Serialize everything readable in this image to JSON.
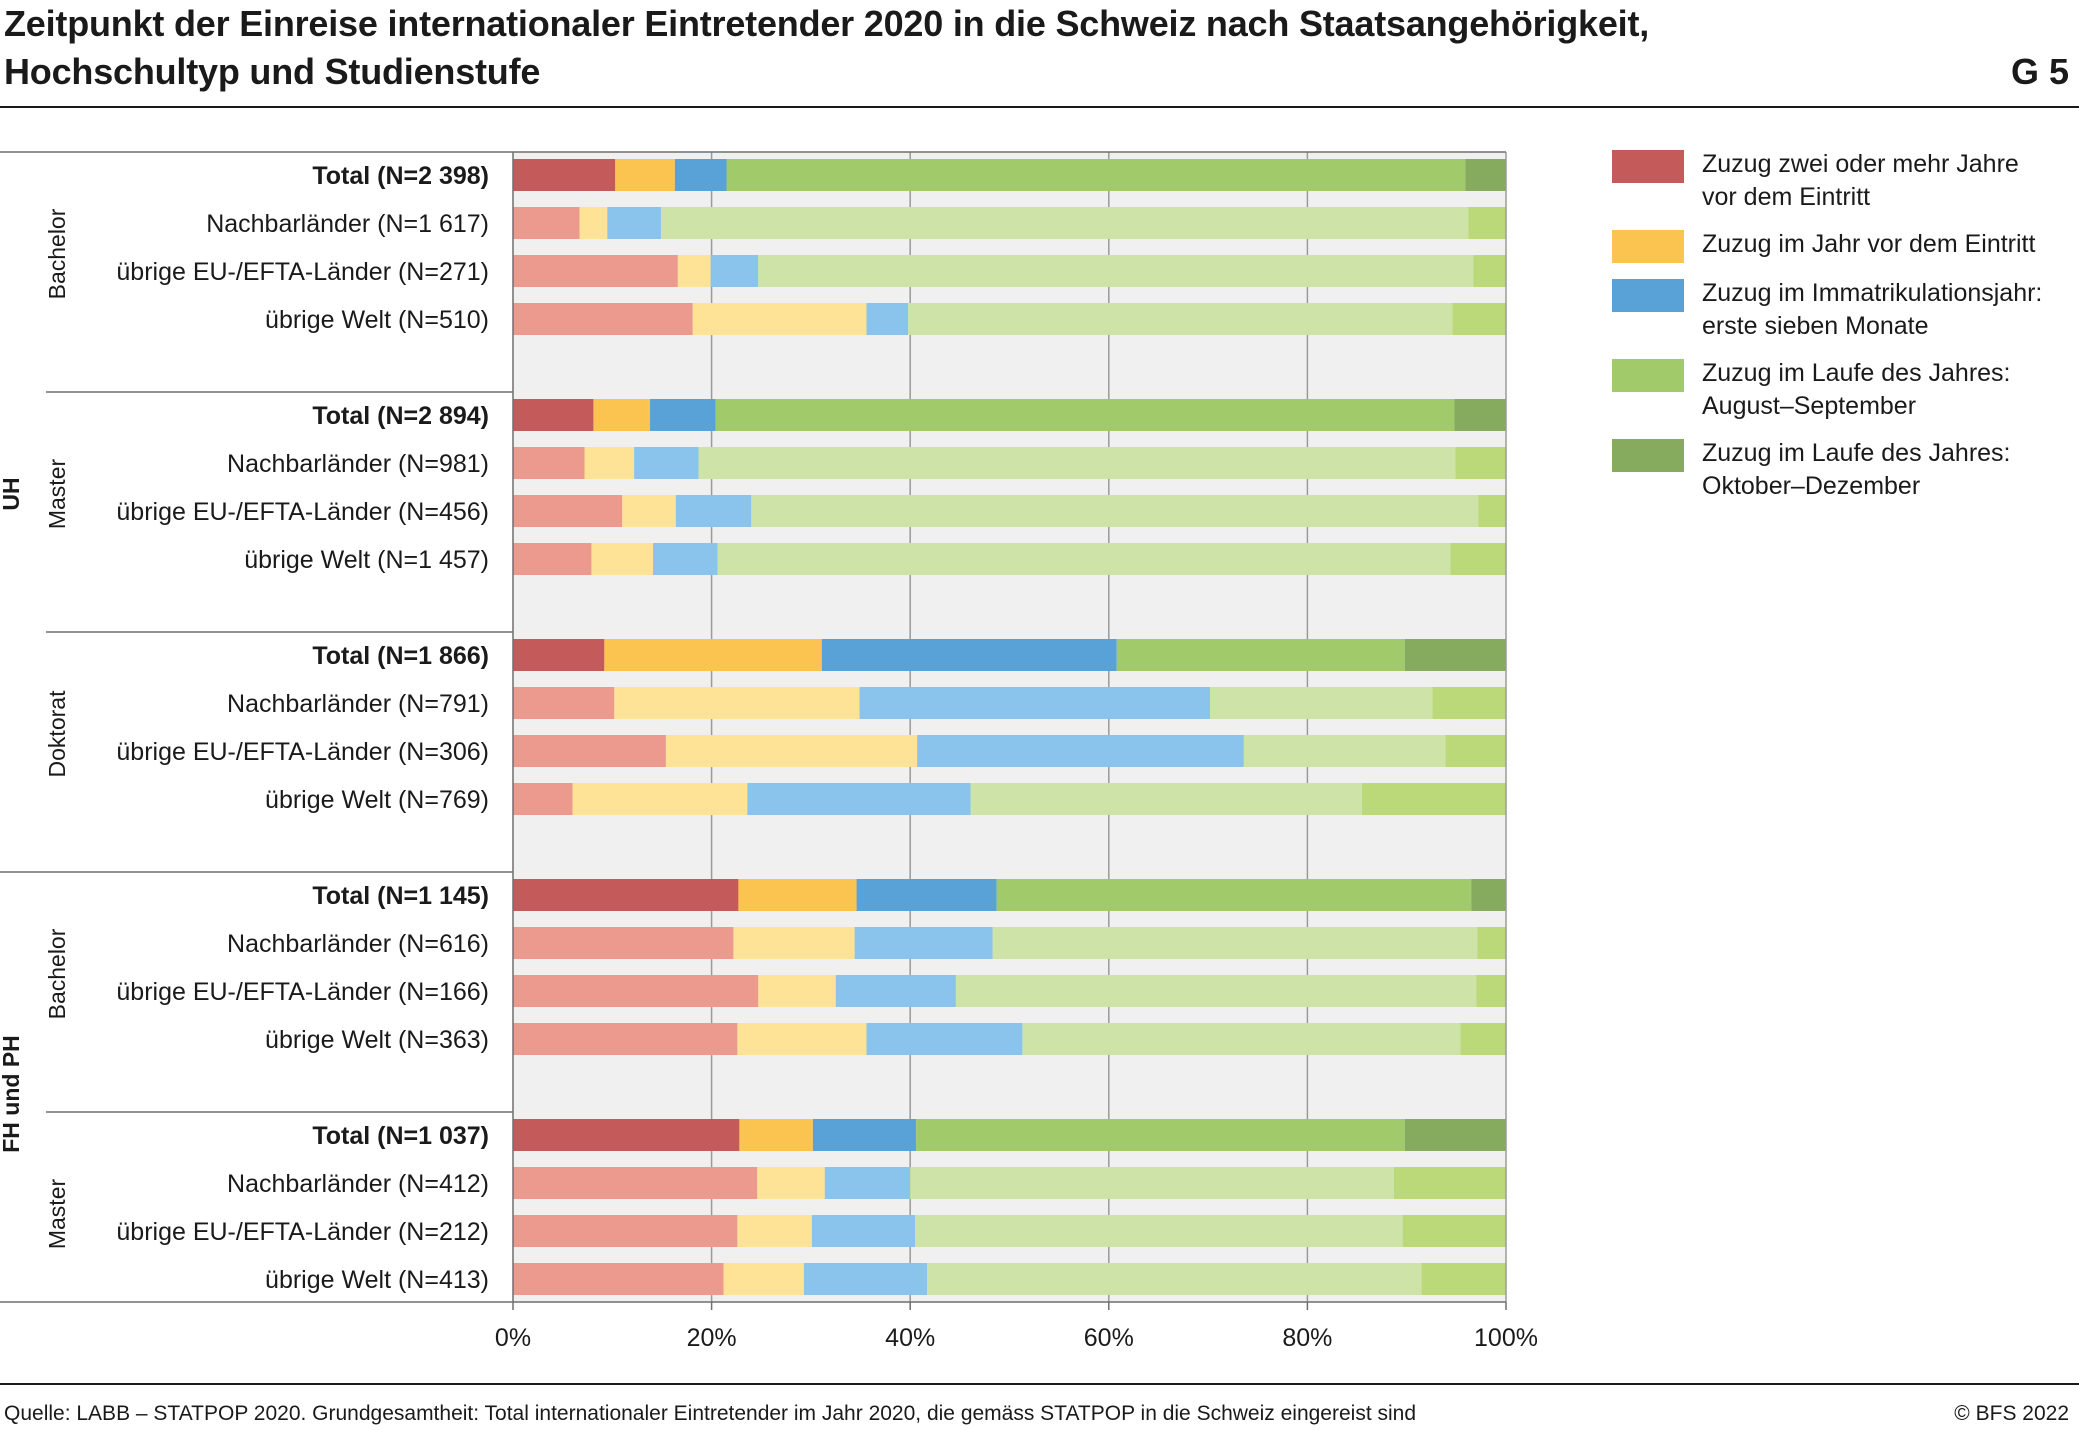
{
  "title": {
    "line1": "Zeitpunkt der Einreise internationaler Eintretender 2020 in die Schweiz nach Staatsangehörigkeit,",
    "line2": "Hochschultyp und Studienstufe",
    "code": "G 5"
  },
  "footer": {
    "source": "Quelle: LABB – STATPOP 2020. Grundgesamtheit: Total internationaler Eintretender im Jahr 2020, die gemäss STATPOP in die Schweiz eingereist sind",
    "copyright": "© BFS 2022"
  },
  "legend": [
    {
      "line1": "Zuzug zwei oder mehr Jahre",
      "line2": "vor dem Eintritt",
      "color": "#c45a5a"
    },
    {
      "line1": "Zuzug im Jahr vor dem Eintritt",
      "line2": "",
      "color": "#fbc451"
    },
    {
      "line1": "Zuzug im Immatrikulationsjahr:",
      "line2": "erste sieben Monate",
      "color": "#59a2d8"
    },
    {
      "line1": "Zuzug im Laufe des Jahres:",
      "line2": "August–September",
      "color": "#a1cb6b"
    },
    {
      "line1": "Zuzug im Laufe des Jahres:",
      "line2": "Oktober–Dezember",
      "color": "#86ab5f"
    }
  ],
  "chart_data": {
    "type": "bar",
    "orientation": "horizontal",
    "stacked": true,
    "xlim": [
      0,
      100
    ],
    "xticks": [
      "0%",
      "20%",
      "40%",
      "60%",
      "80%",
      "100%"
    ],
    "colors": {
      "total": [
        "#c45a5a",
        "#fbc451",
        "#59a2d8",
        "#a1cb6b",
        "#86ab5f"
      ],
      "sub": [
        "#eb9a8d",
        "#fee295",
        "#8ac3ec",
        "#cde3a7",
        "#bcd97a"
      ]
    },
    "groups": [
      {
        "outer": "UH",
        "inner": "Bachelor"
      },
      {
        "outer": "UH",
        "inner": "Master"
      },
      {
        "outer": "UH",
        "inner": "Doktorat"
      },
      {
        "outer": "FH und PH",
        "inner": "Bachelor"
      },
      {
        "outer": "FH und PH",
        "inner": "Master"
      }
    ],
    "outer_labels": [
      "UH",
      "FH und PH"
    ],
    "rows": [
      {
        "label": "Total (N=2 398)",
        "total": true,
        "values": [
          10.3,
          6.0,
          5.2,
          74.4,
          4.1
        ]
      },
      {
        "label": "Nachbarländer (N=1 617)",
        "total": false,
        "values": [
          6.7,
          2.8,
          5.4,
          81.3,
          3.8
        ]
      },
      {
        "label": "übrige EU-/EFTA-Länder (N=271)",
        "total": false,
        "values": [
          16.6,
          3.3,
          4.8,
          72.0,
          3.3
        ]
      },
      {
        "label": "übrige Welt (N=510)",
        "total": false,
        "values": [
          18.1,
          17.5,
          4.2,
          54.8,
          5.4
        ]
      },
      {
        "label": "Total (N=2 894)",
        "total": true,
        "values": [
          8.1,
          5.7,
          6.6,
          74.4,
          5.2
        ]
      },
      {
        "label": "Nachbarländer (N=981)",
        "total": false,
        "values": [
          7.2,
          5.0,
          6.5,
          76.2,
          5.1
        ]
      },
      {
        "label": "übrige EU-/EFTA-Länder (N=456)",
        "total": false,
        "values": [
          11.0,
          5.4,
          7.6,
          73.2,
          2.8
        ]
      },
      {
        "label": "übrige Welt (N=1 457)",
        "total": false,
        "values": [
          7.9,
          6.2,
          6.5,
          73.8,
          5.6
        ]
      },
      {
        "label": "Total (N=1 866)",
        "total": true,
        "values": [
          9.2,
          21.9,
          29.7,
          29.0,
          10.2
        ]
      },
      {
        "label": "Nachbarländer (N=791)",
        "total": false,
        "values": [
          10.2,
          24.7,
          35.3,
          22.4,
          7.4
        ]
      },
      {
        "label": "übrige EU-/EFTA-Länder (N=306)",
        "total": false,
        "values": [
          15.4,
          25.3,
          32.9,
          20.3,
          6.1
        ]
      },
      {
        "label": "übrige Welt (N=769)",
        "total": false,
        "values": [
          6.0,
          17.6,
          22.5,
          39.4,
          14.5
        ]
      },
      {
        "label": "Total (N=1 145)",
        "total": true,
        "values": [
          22.7,
          11.9,
          14.1,
          47.8,
          3.5
        ]
      },
      {
        "label": "Nachbarländer (N=616)",
        "total": false,
        "values": [
          22.2,
          12.2,
          13.9,
          48.8,
          2.9
        ]
      },
      {
        "label": "übrige EU-/EFTA-Länder (N=166)",
        "total": false,
        "values": [
          24.7,
          7.8,
          12.1,
          52.4,
          3.0
        ]
      },
      {
        "label": "übrige Welt (N=363)",
        "total": false,
        "values": [
          22.6,
          13.0,
          15.7,
          44.1,
          4.6
        ]
      },
      {
        "label": "Total (N=1 037)",
        "total": true,
        "values": [
          22.8,
          7.4,
          10.4,
          49.2,
          10.2
        ]
      },
      {
        "label": "Nachbarländer (N=412)",
        "total": false,
        "values": [
          24.6,
          6.8,
          8.6,
          48.7,
          11.3
        ]
      },
      {
        "label": "übrige EU-/EFTA-Länder (N=212)",
        "total": false,
        "values": [
          22.6,
          7.5,
          10.4,
          49.1,
          10.4
        ]
      },
      {
        "label": "übrige Welt (N=413)",
        "total": false,
        "values": [
          21.2,
          8.1,
          12.4,
          49.8,
          8.5
        ]
      }
    ]
  }
}
